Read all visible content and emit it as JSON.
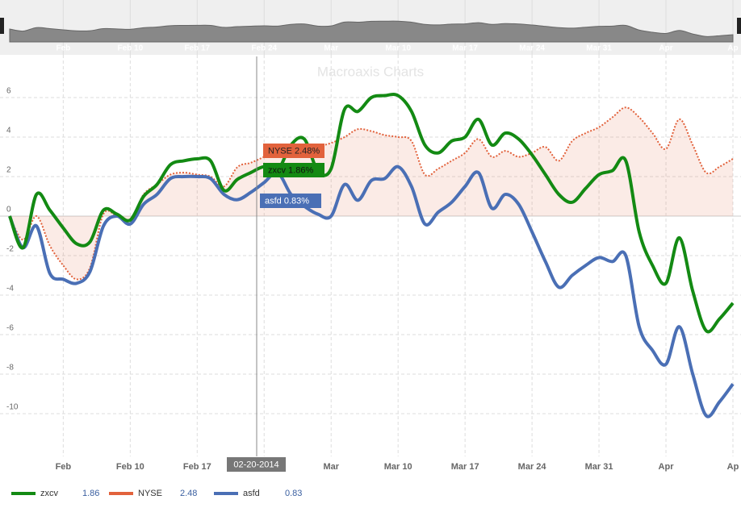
{
  "chart_data": {
    "type": "line",
    "title": "Macroaxis Charts",
    "tooltip_date": "02-20-2014",
    "categories": [
      null,
      null,
      null,
      null,
      "Feb",
      null,
      null,
      null,
      null,
      "Feb 10",
      null,
      null,
      null,
      null,
      "Feb 17",
      null,
      null,
      null,
      null,
      "Feb 24",
      null,
      null,
      null,
      null,
      "Mar",
      null,
      null,
      null,
      null,
      "Mar 10",
      null,
      null,
      null,
      null,
      "Mar 17",
      null,
      null,
      null,
      null,
      "Mar 24",
      null,
      null,
      null,
      null,
      "Mar 31",
      null,
      null,
      null,
      null,
      "Apr",
      null,
      null,
      null,
      null,
      "Ap"
    ],
    "series": [
      {
        "name": "zxcv",
        "color": "#138a13",
        "tooltip_label": "zxcv 1.86%",
        "values": [
          0,
          -1.6,
          1.1,
          0.3,
          -0.6,
          -1.4,
          -1.3,
          0.3,
          0.1,
          -0.2,
          1.0,
          1.6,
          2.6,
          2.8,
          2.9,
          2.8,
          1.3,
          1.86,
          2.2,
          2.5,
          2.3,
          3.6,
          3.9,
          2.3,
          2.4,
          5.4,
          5.3,
          6.0,
          6.1,
          6.1,
          5.3,
          3.6,
          3.2,
          3.8,
          4.0,
          4.9,
          3.6,
          4.2,
          3.9,
          3.1,
          2.1,
          1.1,
          0.7,
          1.4,
          2.1,
          2.3,
          2.8,
          -0.8,
          -2.5,
          -3.4,
          -1.1,
          -3.8,
          -5.8,
          -5.2,
          -4.4
        ]
      },
      {
        "name": "NYSE",
        "color": "#e2623c",
        "tooltip_label": "NYSE 2.48%",
        "dotted": true,
        "area": true,
        "values": [
          0,
          -1.2,
          0.0,
          -1.5,
          -2.5,
          -3.2,
          -2.6,
          0.1,
          0.0,
          -0.2,
          1.1,
          1.6,
          2.1,
          2.2,
          2.1,
          2.0,
          1.5,
          2.48,
          2.7,
          3.0,
          3.3,
          3.0,
          3.2,
          3.5,
          3.7,
          4.0,
          4.4,
          4.3,
          4.1,
          4.0,
          3.8,
          2.1,
          2.4,
          2.8,
          3.2,
          3.9,
          3.0,
          3.3,
          3.0,
          3.2,
          3.5,
          2.8,
          3.8,
          4.2,
          4.5,
          5.0,
          5.5,
          5.0,
          4.2,
          3.4,
          4.9,
          3.6,
          2.2,
          2.5,
          2.9
        ]
      },
      {
        "name": "asfd",
        "color": "#4a6fb5",
        "tooltip_label": "asfd 0.83%",
        "values": [
          0,
          -1.6,
          -0.5,
          -2.9,
          -3.2,
          -3.4,
          -2.8,
          -0.5,
          0.0,
          -0.4,
          0.6,
          1.1,
          1.9,
          2.0,
          2.0,
          1.9,
          1.1,
          0.83,
          1.2,
          1.7,
          2.2,
          1.1,
          0.5,
          0.1,
          0.0,
          1.6,
          0.8,
          1.8,
          1.9,
          2.5,
          1.5,
          -0.4,
          0.2,
          0.7,
          1.5,
          2.2,
          0.4,
          1.1,
          0.6,
          -0.8,
          -2.3,
          -3.6,
          -3.0,
          -2.5,
          -2.1,
          -2.3,
          -2.0,
          -5.6,
          -6.8,
          -7.5,
          -5.6,
          -8.0,
          -10.1,
          -9.4,
          -8.5
        ]
      }
    ],
    "ylim": [
      -12,
      8
    ],
    "yticks": [
      -10,
      -8,
      -6,
      -4,
      -2,
      0,
      2,
      4,
      6
    ],
    "grid": true
  }
}
